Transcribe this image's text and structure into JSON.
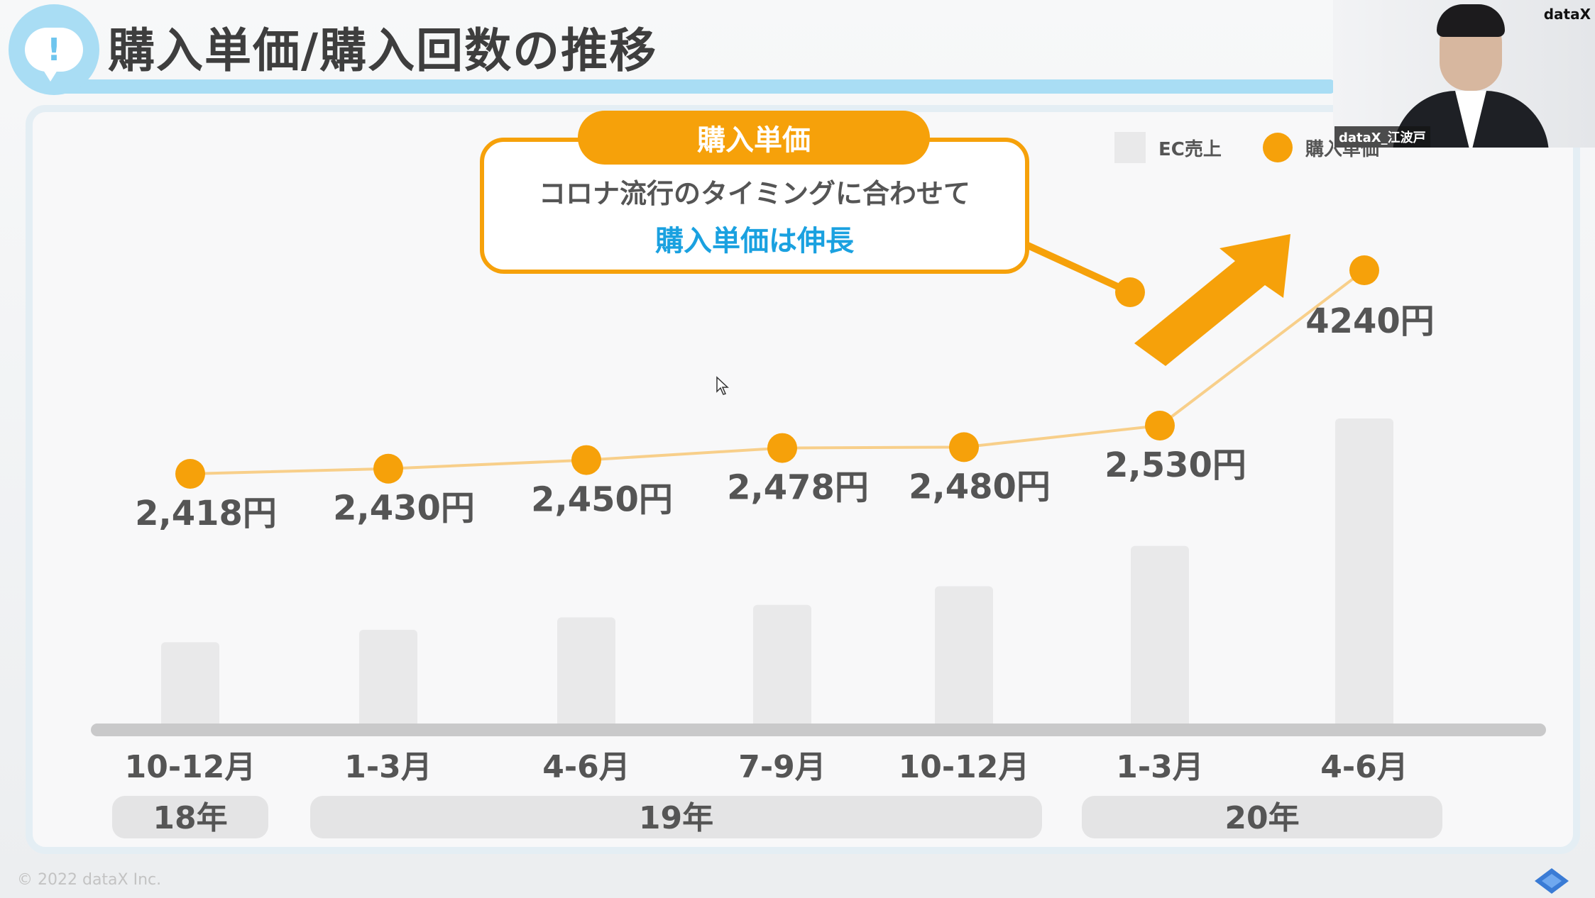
{
  "slide": {
    "title": "購入単価/購入回数の推移",
    "title_badge": "!"
  },
  "callout": {
    "header": "購入単価",
    "line1": "コロナ流行のタイミングに合わせて",
    "line2": "購入単価は伸長"
  },
  "legend": {
    "bars": "EC売上",
    "dots": "購入単価"
  },
  "webcam": {
    "name_tag": "dataX_江波戸",
    "brand": "dataX"
  },
  "footer": {
    "copyright": "© 2022 dataX Inc."
  },
  "colors": {
    "accent_orange": "#f6a10a",
    "accent_blue": "#1aa1e0",
    "bar_gray": "#e9e9ea",
    "title_band": "#a9ddf4"
  },
  "chart_data": {
    "type": "bar+line",
    "categories": [
      "10-12月",
      "1-3月",
      "4-6月",
      "7-9月",
      "10-12月",
      "1-3月",
      "4-6月"
    ],
    "year_groups": [
      {
        "label": "18年",
        "start": 0,
        "end": 0
      },
      {
        "label": "19年",
        "start": 1,
        "end": 4
      },
      {
        "label": "20年",
        "start": 5,
        "end": 6
      }
    ],
    "series": [
      {
        "name": "EC売上",
        "kind": "bar",
        "values": [
          28,
          32,
          36,
          40,
          46,
          59,
          100
        ]
      },
      {
        "name": "購入単価",
        "kind": "line",
        "values": [
          2418,
          2430,
          2450,
          2478,
          2480,
          2530,
          4240
        ],
        "labels": [
          "2,418円",
          "2,430円",
          "2,450円",
          "2,478円",
          "2,480円",
          "2,530円",
          "4240円"
        ]
      }
    ],
    "grid": false,
    "legend_position": "top-right",
    "annotation": "upward-arrow"
  }
}
